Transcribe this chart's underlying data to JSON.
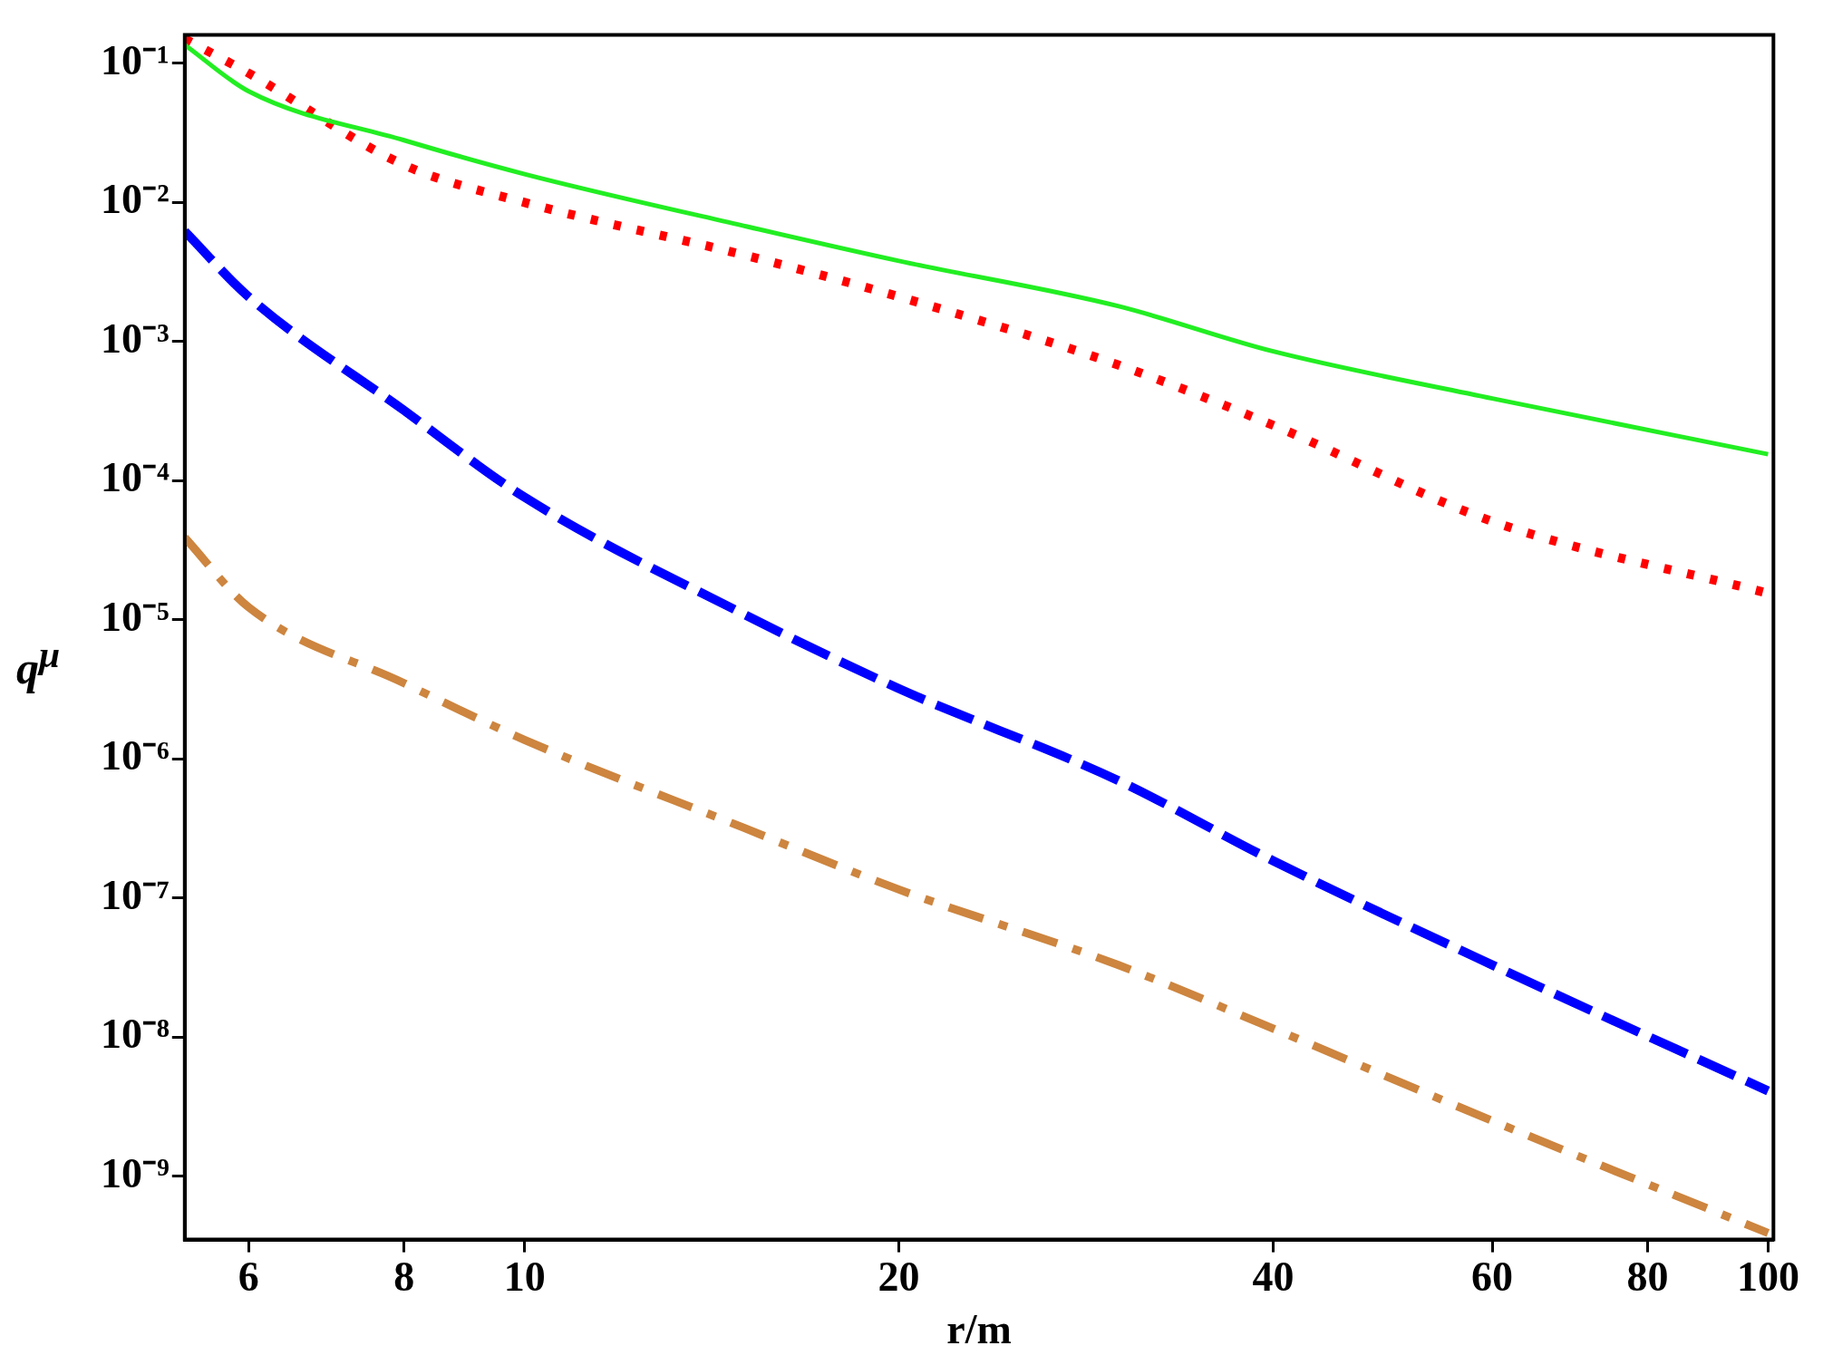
{
  "chart_data": {
    "type": "line",
    "xlabel": "r/m",
    "ylabel": "q$^{μ}$",
    "log": "xy",
    "grid": false,
    "legend": false,
    "xlim": [
      5.33,
      101
    ],
    "xticks": [
      6,
      8,
      10,
      20,
      40,
      60,
      80,
      100
    ],
    "ylim": [
      3.5e-10,
      0.16
    ],
    "yticks": [
      {
        "value": 0.1,
        "label": "10⁻¹"
      },
      {
        "value": 0.01,
        "label": "10⁻²"
      },
      {
        "value": 0.001,
        "label": "10⁻³"
      },
      {
        "value": 0.0001,
        "label": "10⁻⁴"
      },
      {
        "value": 1e-05,
        "label": "10⁻⁵"
      },
      {
        "value": 1e-06,
        "label": "10⁻⁶"
      },
      {
        "value": 1e-07,
        "label": "10⁻⁷"
      },
      {
        "value": 1e-08,
        "label": "10⁻⁸"
      },
      {
        "value": 1e-09,
        "label": "10⁻⁹"
      }
    ],
    "x": [
      5.33,
      6,
      8,
      10,
      15,
      20,
      30,
      40,
      60,
      100
    ],
    "series": [
      {
        "color": "#22ee22",
        "line_style": "solid",
        "values": [
          0.136,
          0.063,
          0.028,
          0.016,
          0.0068,
          0.0038,
          0.0018,
          0.00085,
          0.00039,
          0.000155
        ]
      },
      {
        "color": "#ff0000",
        "line_style": "dotted",
        "values": [
          0.15,
          0.085,
          0.0186,
          0.01,
          0.0042,
          0.0021,
          0.00068,
          0.00025,
          5.1e-05,
          1.55e-05
        ]
      },
      {
        "color": "#0000ff",
        "line_style": "dashed",
        "values": [
          0.0062,
          0.0021,
          0.00032,
          7.6e-05,
          1.1e-05,
          3.2e-06,
          7e-07,
          1.85e-07,
          3.3e-08,
          4.1e-09
        ]
      },
      {
        "color": "#cd853f",
        "line_style": "dashdot",
        "values": [
          3.9e-05,
          1.23e-05,
          3.5e-06,
          1.37e-06,
          3.2e-07,
          1.15e-07,
          3.3e-08,
          1.15e-08,
          2.5e-09,
          3.9e-10
        ]
      }
    ]
  }
}
